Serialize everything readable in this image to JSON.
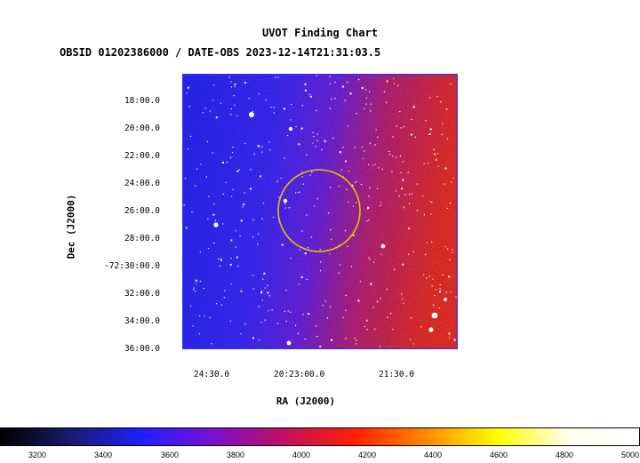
{
  "title": "UVOT Finding Chart",
  "subtitle": "OBSID 01202386000 / DATE-OBS 2023-12-14T21:31:03.5",
  "axes": {
    "ylabel": "Dec (J2000)",
    "xlabel": "RA (J2000)",
    "dec_ticks": [
      "18:00.0",
      "20:00.0",
      "22:00.0",
      "24:00.0",
      "26:00.0",
      "28:00.0",
      "-72:30:00.0",
      "32:00.0",
      "34:00.0",
      "36:00.0"
    ],
    "ra_ticks": [
      "24:30.0",
      "20:23:00.0",
      "21:30.0"
    ]
  },
  "colorbar": {
    "ticks": [
      "3200",
      "3400",
      "3600",
      "3800",
      "4000",
      "4200",
      "4400",
      "4600",
      "4800",
      "5000"
    ],
    "colors": [
      "#000000",
      "#1a1a70",
      "#2020ff",
      "#7a10d0",
      "#c01060",
      "#ff2000",
      "#ff8a00",
      "#ffff00",
      "#fffff0",
      "#ffffff"
    ]
  },
  "colors": {
    "frame": "#3333ff",
    "source_circle": "#e8c000",
    "field_left": "#1e22f0",
    "field_right": "#d02020"
  }
}
